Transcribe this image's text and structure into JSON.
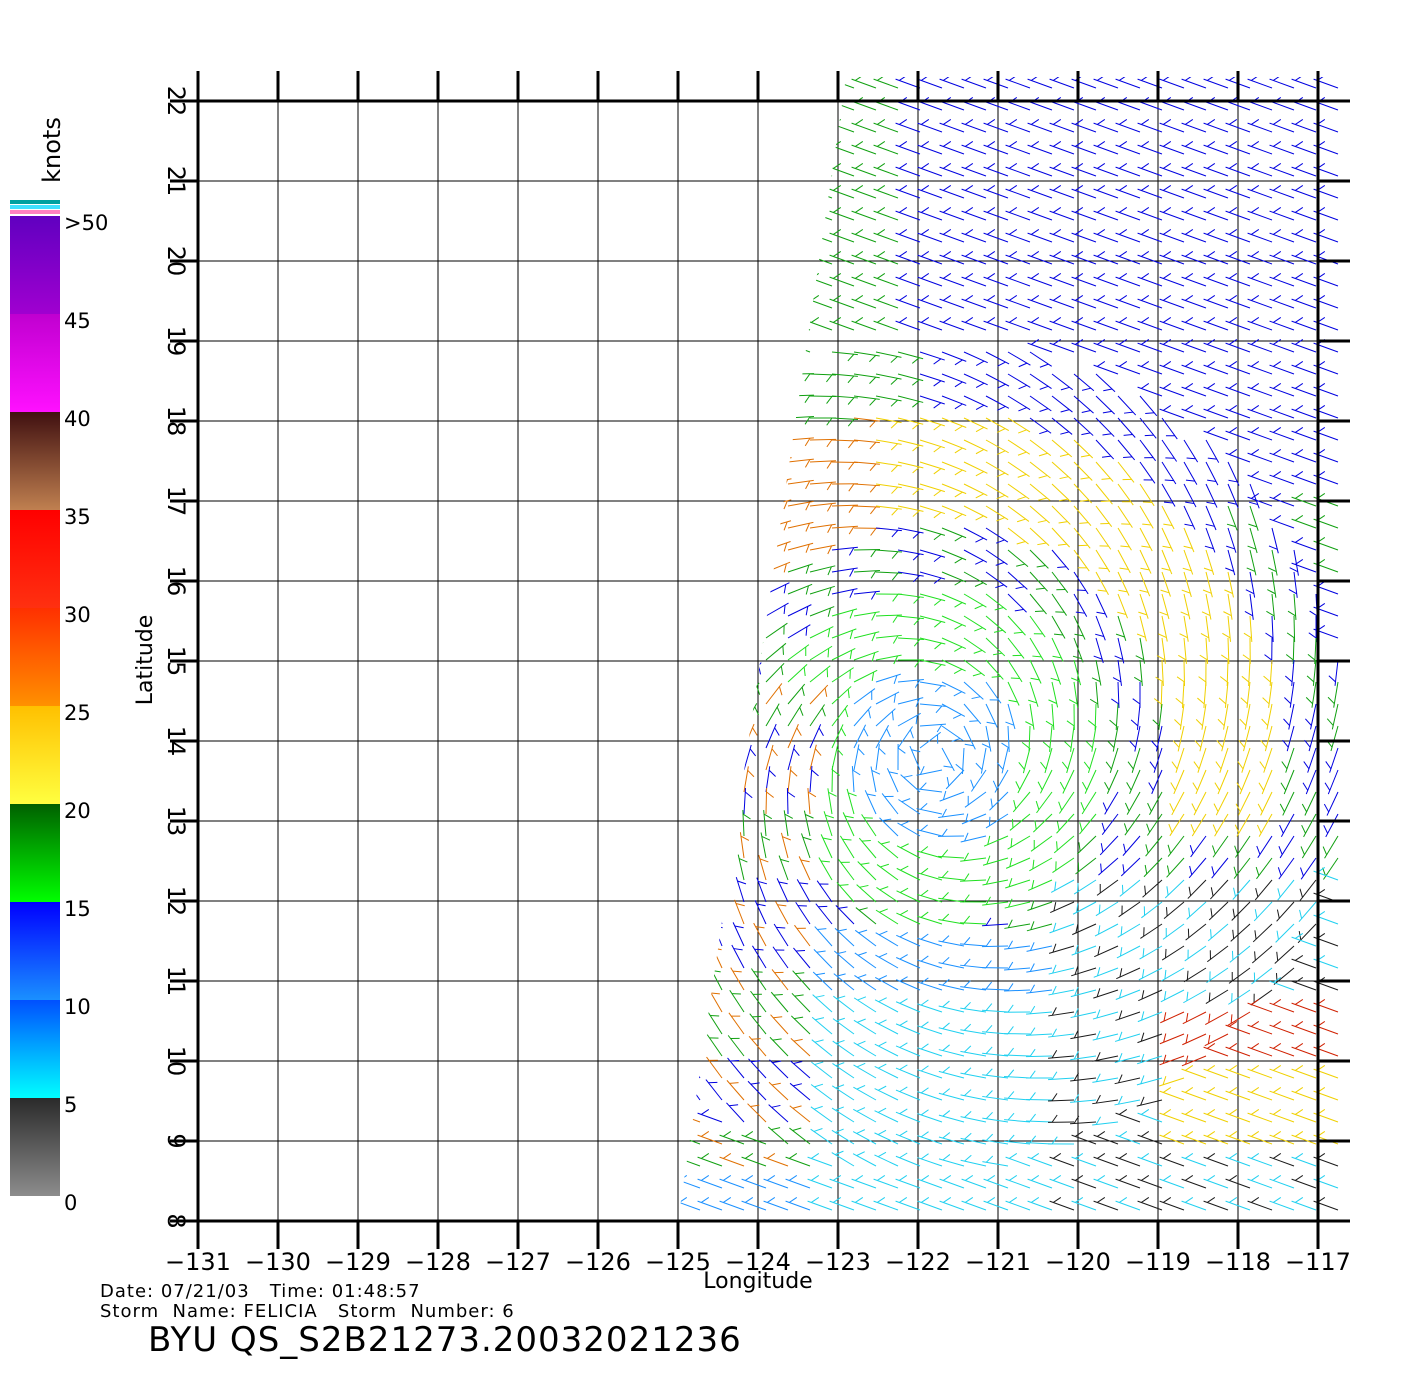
{
  "map": {
    "xlabel": "Longitude",
    "ylabel": "Latitude",
    "lon_range": [
      -131,
      -117
    ],
    "lat_range": [
      8,
      22
    ],
    "lon_ticks": [
      "−131",
      "−130",
      "−129",
      "−128",
      "−127",
      "−126",
      "−125",
      "−124",
      "−123",
      "−122",
      "−121",
      "−120",
      "−119",
      "−118",
      "−117"
    ],
    "lat_ticks": [
      "8",
      "9",
      "10",
      "11",
      "12",
      "13",
      "14",
      "15",
      "16",
      "17",
      "18",
      "19",
      "20",
      "21",
      "22"
    ],
    "grid": true,
    "swath_corners_lonlat": [
      [
        -122.9,
        22.3
      ],
      [
        -116.7,
        22.3
      ],
      [
        -116.7,
        8
      ],
      [
        -125.0,
        8
      ]
    ]
  },
  "colorbar": {
    "unit": "knots",
    "labels": [
      ">50",
      "45",
      "40",
      "35",
      "30",
      "25",
      "20",
      "15",
      "10",
      "5",
      "0"
    ],
    "bands": [
      {
        "from": 0,
        "to": 5,
        "top": "#2a2a2a",
        "bottom": "#8c8c8c"
      },
      {
        "from": 5,
        "to": 10,
        "top": "#0050ff",
        "bottom": "#00ffff"
      },
      {
        "from": 10,
        "to": 15,
        "top": "#0000ff",
        "bottom": "#1a90ff"
      },
      {
        "from": 15,
        "to": 20,
        "top": "#006000",
        "bottom": "#00ff00"
      },
      {
        "from": 20,
        "to": 25,
        "top": "#ffc000",
        "bottom": "#ffff40"
      },
      {
        "from": 25,
        "to": 30,
        "top": "#ff3000",
        "bottom": "#ff9000"
      },
      {
        "from": 30,
        "to": 35,
        "top": "#ff0000",
        "bottom": "#ff3010"
      },
      {
        "from": 35,
        "to": 40,
        "top": "#401010",
        "bottom": "#c08050"
      },
      {
        "from": 40,
        "to": 45,
        "top": "#c000d0",
        "bottom": "#ff10ff"
      },
      {
        "from": 45,
        "to": 50,
        "top": "#6000c0",
        "bottom": "#a000d0"
      }
    ],
    "cap_colors": [
      "#00a0a0",
      "#40e0ff",
      "#ff80c0"
    ]
  },
  "wind_field": {
    "storm_center_lonlat": [
      -121.8,
      13.8
    ],
    "background_direction_deg": 200,
    "colors": {
      "calm": "#1a1a1a",
      "cyan": "#20d0f0",
      "lightblue": "#1a90ff",
      "blue": "#0000e0",
      "green": "#10a010",
      "brightgreen": "#20e020",
      "yellow": "#f0d000",
      "orange": "#e07000",
      "red": "#d02000"
    }
  },
  "footer": {
    "date_label": "Date:",
    "date": "07/21/03",
    "time_label": "Time:",
    "time": "01:48:57",
    "storm_name_label": "Storm  Name:",
    "storm_name": "FELICIA",
    "storm_number_label": "Storm  Number:",
    "storm_number": "6",
    "product": "BYU  QS_S2B21273.20032021236"
  }
}
